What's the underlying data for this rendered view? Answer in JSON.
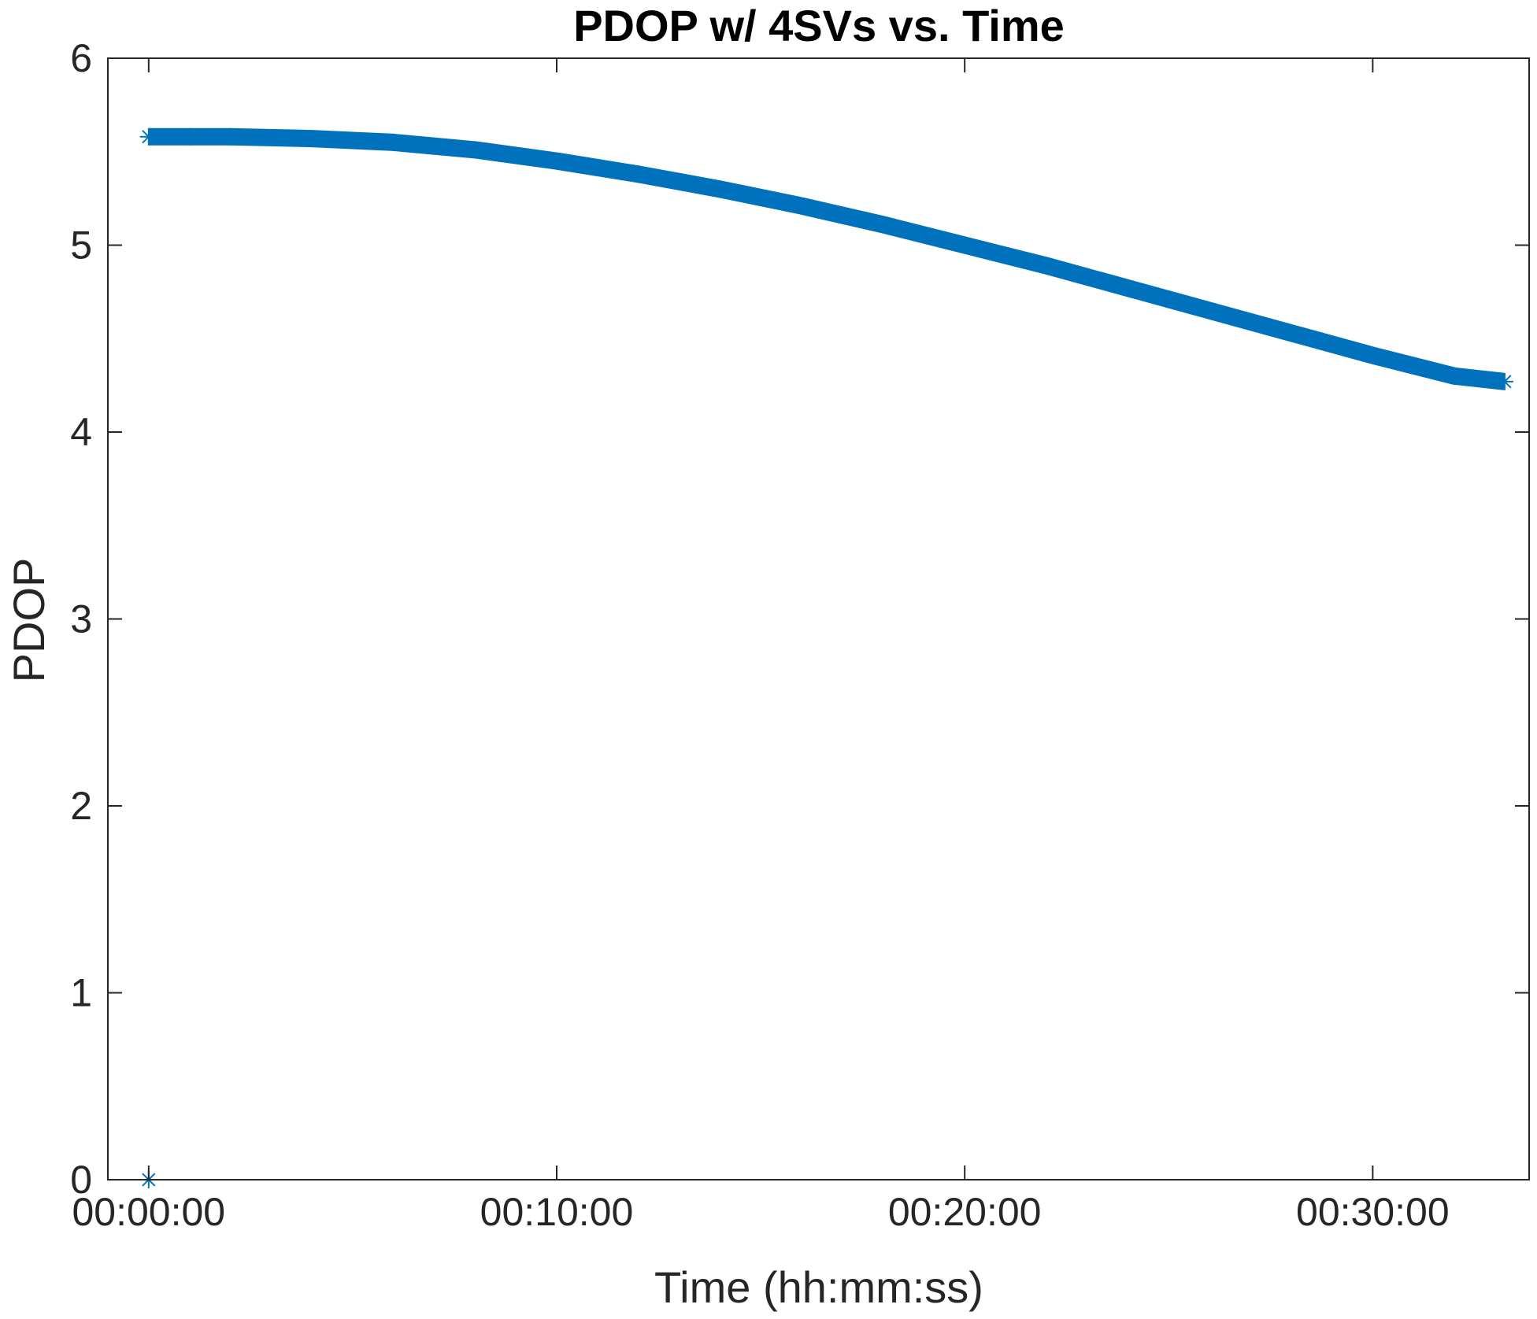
{
  "chart_data": {
    "type": "scatter",
    "title": "PDOP w/ 4SVs vs. Time",
    "xlabel": "Time (hh:mm:ss)",
    "ylabel": "PDOP",
    "x_unit": "seconds",
    "xlim": [
      -60,
      2030
    ],
    "ylim": [
      0,
      6
    ],
    "x_ticks": [
      {
        "value": 0,
        "label": "00:00:00"
      },
      {
        "value": 600,
        "label": "00:10:00"
      },
      {
        "value": 1200,
        "label": "00:20:00"
      },
      {
        "value": 1800,
        "label": "00:30:00"
      }
    ],
    "y_ticks": [
      {
        "value": 0,
        "label": "0"
      },
      {
        "value": 1,
        "label": "1"
      },
      {
        "value": 2,
        "label": "2"
      },
      {
        "value": 3,
        "label": "3"
      },
      {
        "value": 4,
        "label": "4"
      },
      {
        "value": 5,
        "label": "5"
      },
      {
        "value": 6,
        "label": "6"
      }
    ],
    "grid": false,
    "marker": "asterisk",
    "color": "#0072BD",
    "series": [
      {
        "points": [
          {
            "x": 0,
            "y": 0.0
          },
          {
            "x": 0,
            "y": 5.58
          },
          {
            "x": 60,
            "y": 5.58
          },
          {
            "x": 120,
            "y": 5.58
          },
          {
            "x": 240,
            "y": 5.57
          },
          {
            "x": 360,
            "y": 5.55
          },
          {
            "x": 480,
            "y": 5.51
          },
          {
            "x": 600,
            "y": 5.45
          },
          {
            "x": 720,
            "y": 5.38
          },
          {
            "x": 840,
            "y": 5.3
          },
          {
            "x": 960,
            "y": 5.21
          },
          {
            "x": 1080,
            "y": 5.11
          },
          {
            "x": 1200,
            "y": 5.0
          },
          {
            "x": 1320,
            "y": 4.89
          },
          {
            "x": 1440,
            "y": 4.77
          },
          {
            "x": 1560,
            "y": 4.65
          },
          {
            "x": 1680,
            "y": 4.53
          },
          {
            "x": 1800,
            "y": 4.41
          },
          {
            "x": 1920,
            "y": 4.3
          },
          {
            "x": 1994,
            "y": 4.27
          }
        ]
      }
    ]
  }
}
